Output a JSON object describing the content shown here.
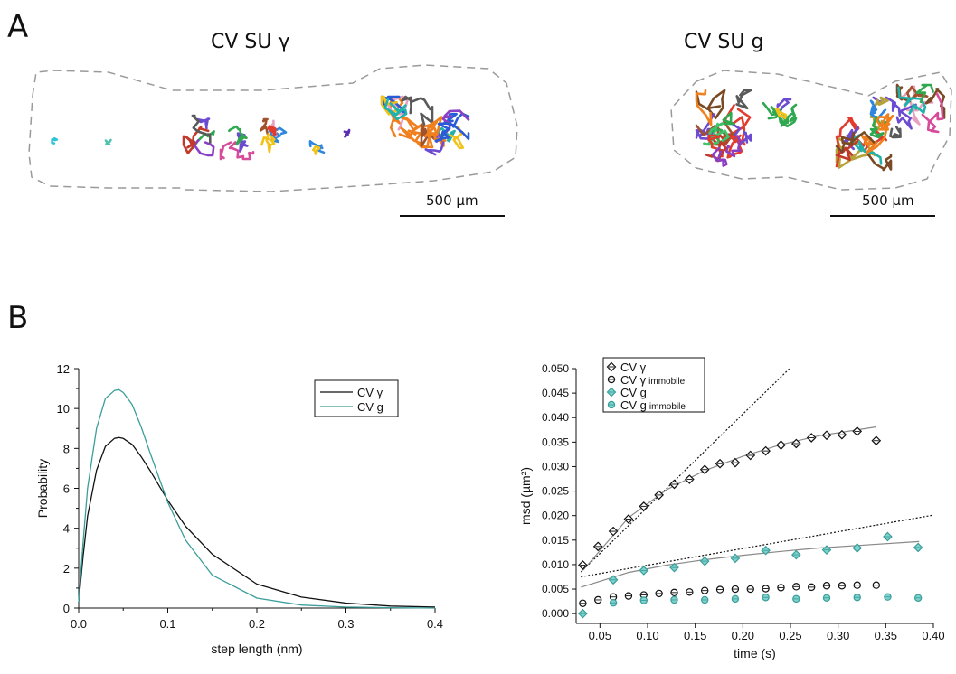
{
  "panel_a": {
    "letter": "A",
    "left_title": "CV SU γ",
    "right_title": "CV SU g",
    "left_scale_label": "500 µm",
    "right_scale_label": "500 µm"
  },
  "panel_b": {
    "letter": "B"
  },
  "colors": {
    "cv_gamma": "#111111",
    "cv_g": "#3a9e9a",
    "marker_fill_g": "#7fd3cf",
    "fit_line": "#888888",
    "outline": "#9a9a9a"
  },
  "chart_data": [
    {
      "type": "line",
      "xlabel": "step length (nm)",
      "ylabel": "Probability",
      "xlim": [
        0,
        0.4
      ],
      "ylim": [
        0,
        12
      ],
      "xticks": [
        "0.0",
        "0.1",
        "0.2",
        "0.3",
        "0.4"
      ],
      "yticks": [
        "0",
        "2",
        "4",
        "6",
        "8",
        "10",
        "12"
      ],
      "legend": "top-right",
      "series": [
        {
          "name": "CV γ",
          "x": [
            0,
            0.005,
            0.01,
            0.02,
            0.03,
            0.04,
            0.045,
            0.05,
            0.06,
            0.07,
            0.08,
            0.1,
            0.12,
            0.15,
            0.2,
            0.25,
            0.3,
            0.35,
            0.4
          ],
          "y": [
            0.3,
            2.6,
            4.6,
            6.9,
            8.1,
            8.5,
            8.55,
            8.5,
            8.2,
            7.6,
            6.9,
            5.4,
            4.1,
            2.7,
            1.2,
            0.55,
            0.25,
            0.1,
            0.05
          ]
        },
        {
          "name": "CV g",
          "x": [
            0,
            0.005,
            0.01,
            0.02,
            0.03,
            0.04,
            0.045,
            0.05,
            0.06,
            0.07,
            0.08,
            0.1,
            0.12,
            0.15,
            0.2,
            0.25,
            0.3,
            0.35,
            0.4
          ],
          "y": [
            0.3,
            3.3,
            6.0,
            9.0,
            10.5,
            10.9,
            10.95,
            10.8,
            10.2,
            9.1,
            7.8,
            5.3,
            3.4,
            1.65,
            0.5,
            0.15,
            0.05,
            0.02,
            0.0
          ]
        }
      ]
    },
    {
      "type": "scatter",
      "xlabel": "time (s)",
      "ylabel": "msd (µm²)",
      "xlim": [
        0.025,
        0.4
      ],
      "ylim": [
        -0.002,
        0.05
      ],
      "xticks": [
        "0.05",
        "0.10",
        "0.15",
        "0.20",
        "0.25",
        "0.30",
        "0.35",
        "0.40"
      ],
      "yticks": [
        "0.000",
        "0.005",
        "0.010",
        "0.015",
        "0.020",
        "0.025",
        "0.030",
        "0.035",
        "0.040",
        "0.045",
        "0.050"
      ],
      "legend": "top-left",
      "series": [
        {
          "name": "CV γ",
          "marker": "diamond",
          "x": [
            0.032,
            0.048,
            0.064,
            0.08,
            0.096,
            0.112,
            0.128,
            0.144,
            0.16,
            0.176,
            0.192,
            0.208,
            0.224,
            0.24,
            0.256,
            0.272,
            0.288,
            0.304,
            0.32,
            0.34
          ],
          "y": [
            0.0099,
            0.0137,
            0.0168,
            0.0193,
            0.0219,
            0.0242,
            0.0264,
            0.0274,
            0.0294,
            0.0306,
            0.0308,
            0.0323,
            0.0332,
            0.0344,
            0.0347,
            0.0359,
            0.0364,
            0.0365,
            0.0372,
            0.0353
          ]
        },
        {
          "name": "CV γ immobile",
          "marker": "circle",
          "x": [
            0.032,
            0.048,
            0.064,
            0.08,
            0.096,
            0.112,
            0.128,
            0.144,
            0.16,
            0.176,
            0.192,
            0.208,
            0.224,
            0.24,
            0.256,
            0.272,
            0.288,
            0.304,
            0.32,
            0.34
          ],
          "y": [
            0.0021,
            0.0028,
            0.0034,
            0.0036,
            0.0038,
            0.0041,
            0.0043,
            0.0044,
            0.0047,
            0.0049,
            0.005,
            0.005,
            0.0051,
            0.0053,
            0.0055,
            0.0054,
            0.0057,
            0.0057,
            0.0058,
            0.0058
          ]
        },
        {
          "name": "CV g",
          "marker": "diamond",
          "x": [
            0.032,
            0.064,
            0.096,
            0.128,
            0.16,
            0.192,
            0.224,
            0.256,
            0.288,
            0.32,
            0.352,
            0.384
          ],
          "y": [
            0.0,
            0.0069,
            0.0088,
            0.0094,
            0.0107,
            0.0113,
            0.0129,
            0.012,
            0.013,
            0.0134,
            0.0157,
            0.0135
          ]
        },
        {
          "name": "CV g immobile",
          "marker": "circle",
          "x": [
            0.064,
            0.096,
            0.128,
            0.16,
            0.192,
            0.224,
            0.256,
            0.288,
            0.32,
            0.352,
            0.384
          ],
          "y": [
            0.0022,
            0.0027,
            0.0028,
            0.0028,
            0.003,
            0.0033,
            0.003,
            0.0032,
            0.0033,
            0.0034,
            0.0032
          ]
        }
      ],
      "fit_lines": [
        {
          "style": "dotted",
          "x": [
            0.03,
            0.25
          ],
          "y": [
            0.0085,
            0.0502
          ]
        },
        {
          "style": "solid",
          "x": [
            0.032,
            0.08,
            0.12,
            0.16,
            0.2,
            0.24,
            0.28,
            0.34
          ],
          "y": [
            0.0088,
            0.0196,
            0.0253,
            0.0292,
            0.0321,
            0.0345,
            0.0363,
            0.0381
          ]
        },
        {
          "style": "dotted",
          "x": [
            0.03,
            0.4
          ],
          "y": [
            0.0075,
            0.0201
          ]
        },
        {
          "style": "solid",
          "x": [
            0.03,
            0.08,
            0.12,
            0.16,
            0.2,
            0.24,
            0.28,
            0.32,
            0.385
          ],
          "y": [
            0.0054,
            0.0084,
            0.0099,
            0.011,
            0.0119,
            0.0127,
            0.0134,
            0.0139,
            0.0147
          ]
        }
      ]
    }
  ]
}
